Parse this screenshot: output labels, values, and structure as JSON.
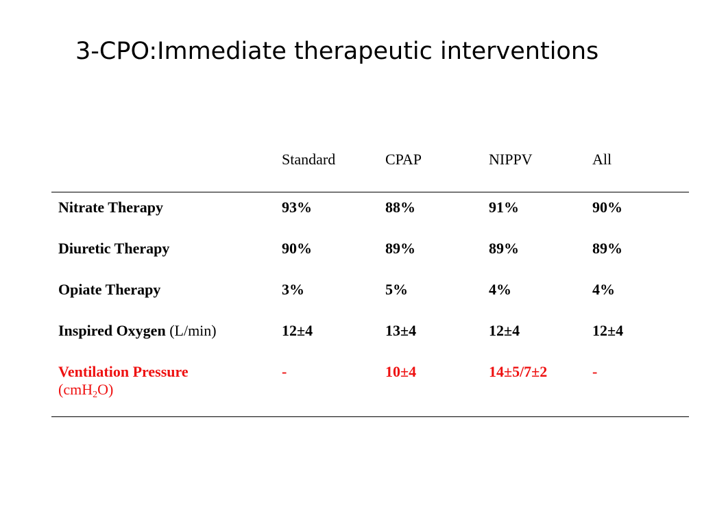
{
  "title": "3-CPO:Immediate therapeutic interventions",
  "table": {
    "headers": [
      "",
      "Standard",
      "CPAP",
      "NIPPV",
      "All"
    ],
    "rows": [
      {
        "label": "Nitrate Therapy",
        "unit": "",
        "values": [
          "93%",
          "88%",
          "91%",
          "90%"
        ]
      },
      {
        "label": "Diuretic Therapy",
        "unit": "",
        "values": [
          "90%",
          "89%",
          "89%",
          "89%"
        ]
      },
      {
        "label": "Opiate Therapy",
        "unit": "",
        "values": [
          "3%",
          "5%",
          "4%",
          "4%"
        ]
      },
      {
        "label": "Inspired Oxygen",
        "unit": "(L/min)",
        "values": [
          "12±4",
          "13±4",
          "12±4",
          "12±4"
        ]
      },
      {
        "label": "Ventilation Pressure",
        "unit_prefix": "(cmH",
        "unit_sub": "2",
        "unit_suffix": "O)",
        "values": [
          "-",
          "10±4",
          "14±5/7±2",
          "-"
        ]
      }
    ]
  },
  "colors": {
    "highlight": "#ee1111",
    "text": "#000000",
    "background": "#ffffff"
  }
}
